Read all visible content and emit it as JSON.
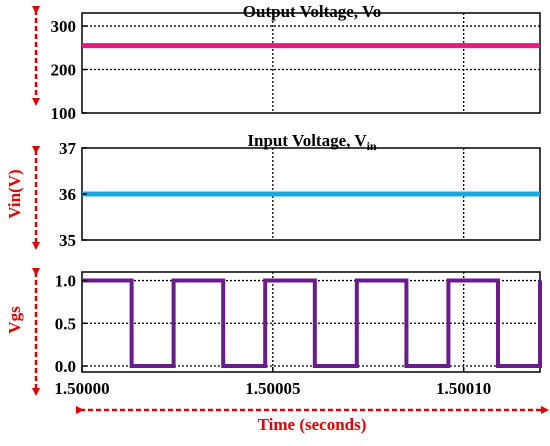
{
  "colors": {
    "vo": "#e8197d",
    "vin": "#1ba8e0",
    "vgs": "#6a1b8c",
    "arrow": "#e00000",
    "axis": "#000000"
  },
  "chart_data": [
    {
      "type": "line",
      "title": "Output Voltage, Vo",
      "ylabel": "",
      "ylim": [
        100,
        330
      ],
      "yticks": [
        100,
        200,
        300
      ],
      "ytick_labels": [
        "100",
        "200",
        "300"
      ],
      "grid": true,
      "series": [
        {
          "color": "vo",
          "x": [
            1.5,
            1.50012
          ],
          "y": [
            255,
            255
          ]
        }
      ]
    },
    {
      "type": "line",
      "title_main": "Input Voltage, V",
      "title_sub": "in",
      "ylabel": "Vin(V)",
      "ylim": [
        35,
        37
      ],
      "yticks": [
        35,
        36,
        37
      ],
      "ytick_labels": [
        "35",
        "36",
        "37"
      ],
      "grid": true,
      "series": [
        {
          "color": "vin",
          "x": [
            1.5,
            1.50012
          ],
          "y": [
            36,
            36
          ]
        }
      ]
    },
    {
      "type": "line",
      "ylabel": "Vgs",
      "ylim": [
        -0.07,
        1.1
      ],
      "yticks": [
        0,
        0.5,
        1.0
      ],
      "ytick_labels": [
        "0.0",
        "0.5",
        "1.0"
      ],
      "grid": true,
      "series": [
        {
          "color": "vgs",
          "step_high": [
            [
              1.5,
              1.500013
            ],
            [
              1.500024,
              1.500037
            ],
            [
              1.500048,
              1.500061
            ],
            [
              1.500072,
              1.500085
            ],
            [
              1.500096,
              1.500109
            ],
            [
              1.50012,
              1.50012
            ]
          ],
          "high": 1.0,
          "low": 0.0
        }
      ]
    }
  ],
  "xaxis": {
    "xlim": [
      1.5,
      1.50012
    ],
    "xticks": [
      1.5,
      1.50005,
      1.5001
    ],
    "xtick_labels": [
      "1.50000",
      "1.50005",
      "1.50010"
    ],
    "xlabel": "Time (seconds)"
  }
}
